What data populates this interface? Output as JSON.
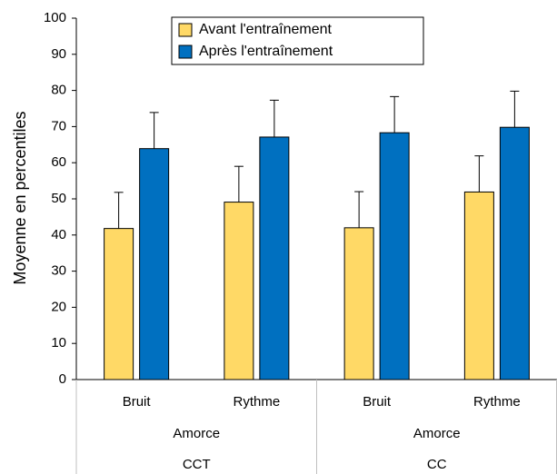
{
  "chart_data": {
    "type": "bar",
    "ylabel": "Moyenne en percentiles",
    "ylim": [
      0,
      100
    ],
    "yticks": [
      0,
      10,
      20,
      30,
      40,
      50,
      60,
      70,
      80,
      90,
      100
    ],
    "grid": false,
    "legend_position": "top-center",
    "groups": [
      {
        "label": "CCT",
        "sublabel": "Amorce",
        "categories": [
          "Bruit",
          "Rythme"
        ]
      },
      {
        "label": "CC",
        "sublabel": "Amorce",
        "categories": [
          "Bruit",
          "Rythme"
        ]
      }
    ],
    "categories": [
      "Bruit",
      "Rythme",
      "Bruit",
      "Rythme"
    ],
    "series": [
      {
        "name": "Avant l'entraînement",
        "color": "#FFD966",
        "values": [
          41.8,
          49.1,
          42.0,
          51.9
        ],
        "errors": [
          10.0,
          9.9,
          10.0,
          10.0
        ]
      },
      {
        "name": "Après l'entraînement",
        "color": "#0070C0",
        "values": [
          63.9,
          67.1,
          68.3,
          69.8
        ],
        "errors": [
          10.0,
          10.2,
          10.0,
          10.0
        ]
      }
    ]
  }
}
